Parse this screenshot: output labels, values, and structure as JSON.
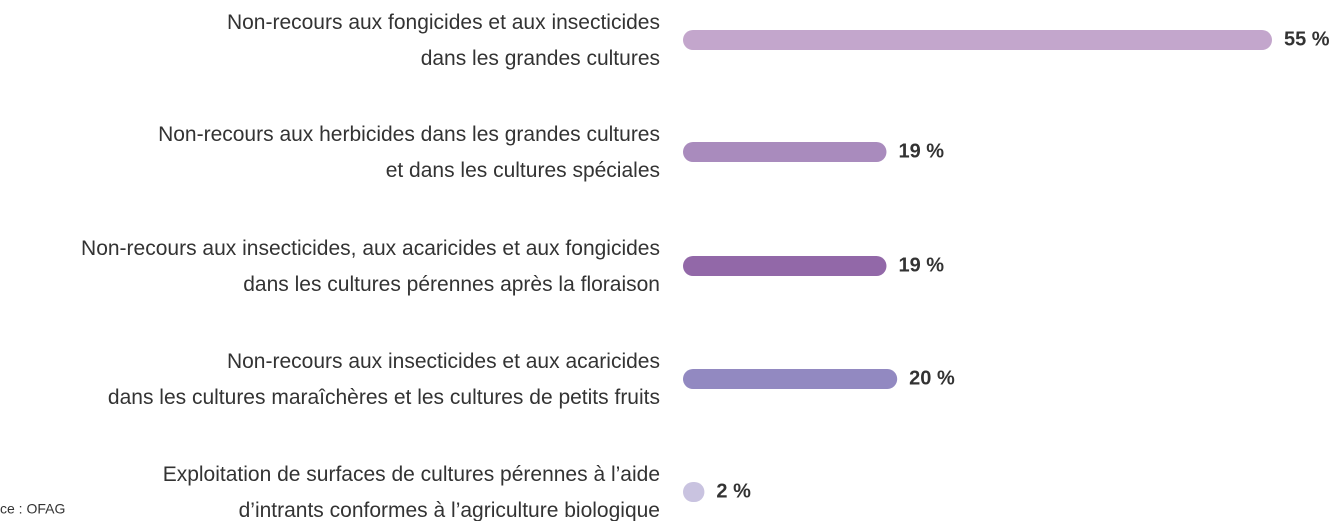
{
  "chart_data": {
    "type": "bar",
    "categories": [
      "Non-recours aux fongicides et aux insecticides\ndans les grandes cultures",
      "Non-recours aux herbicides dans les grandes cultures\net dans les cultures spéciales",
      "Non-recours aux insecticides, aux acaricides et aux fongicides\ndans les cultures pérennes après la floraison",
      "Non-recours aux insecticides et aux acaricides\ndans les cultures maraîchères et les cultures de petits fruits",
      "Exploitation de surfaces de cultures pérennes à l’aide\nd’intrants conformes à l’agriculture biologique"
    ],
    "values": [
      55,
      19,
      19,
      20,
      2
    ],
    "value_labels": [
      "55 %",
      "19 %",
      "19 %",
      "20 %",
      "2 %"
    ],
    "colors": [
      "#c3a6cc",
      "#a98bbd",
      "#9268a8",
      "#9289c1",
      "#c9c3e0"
    ],
    "source": "ce : OFAG"
  }
}
